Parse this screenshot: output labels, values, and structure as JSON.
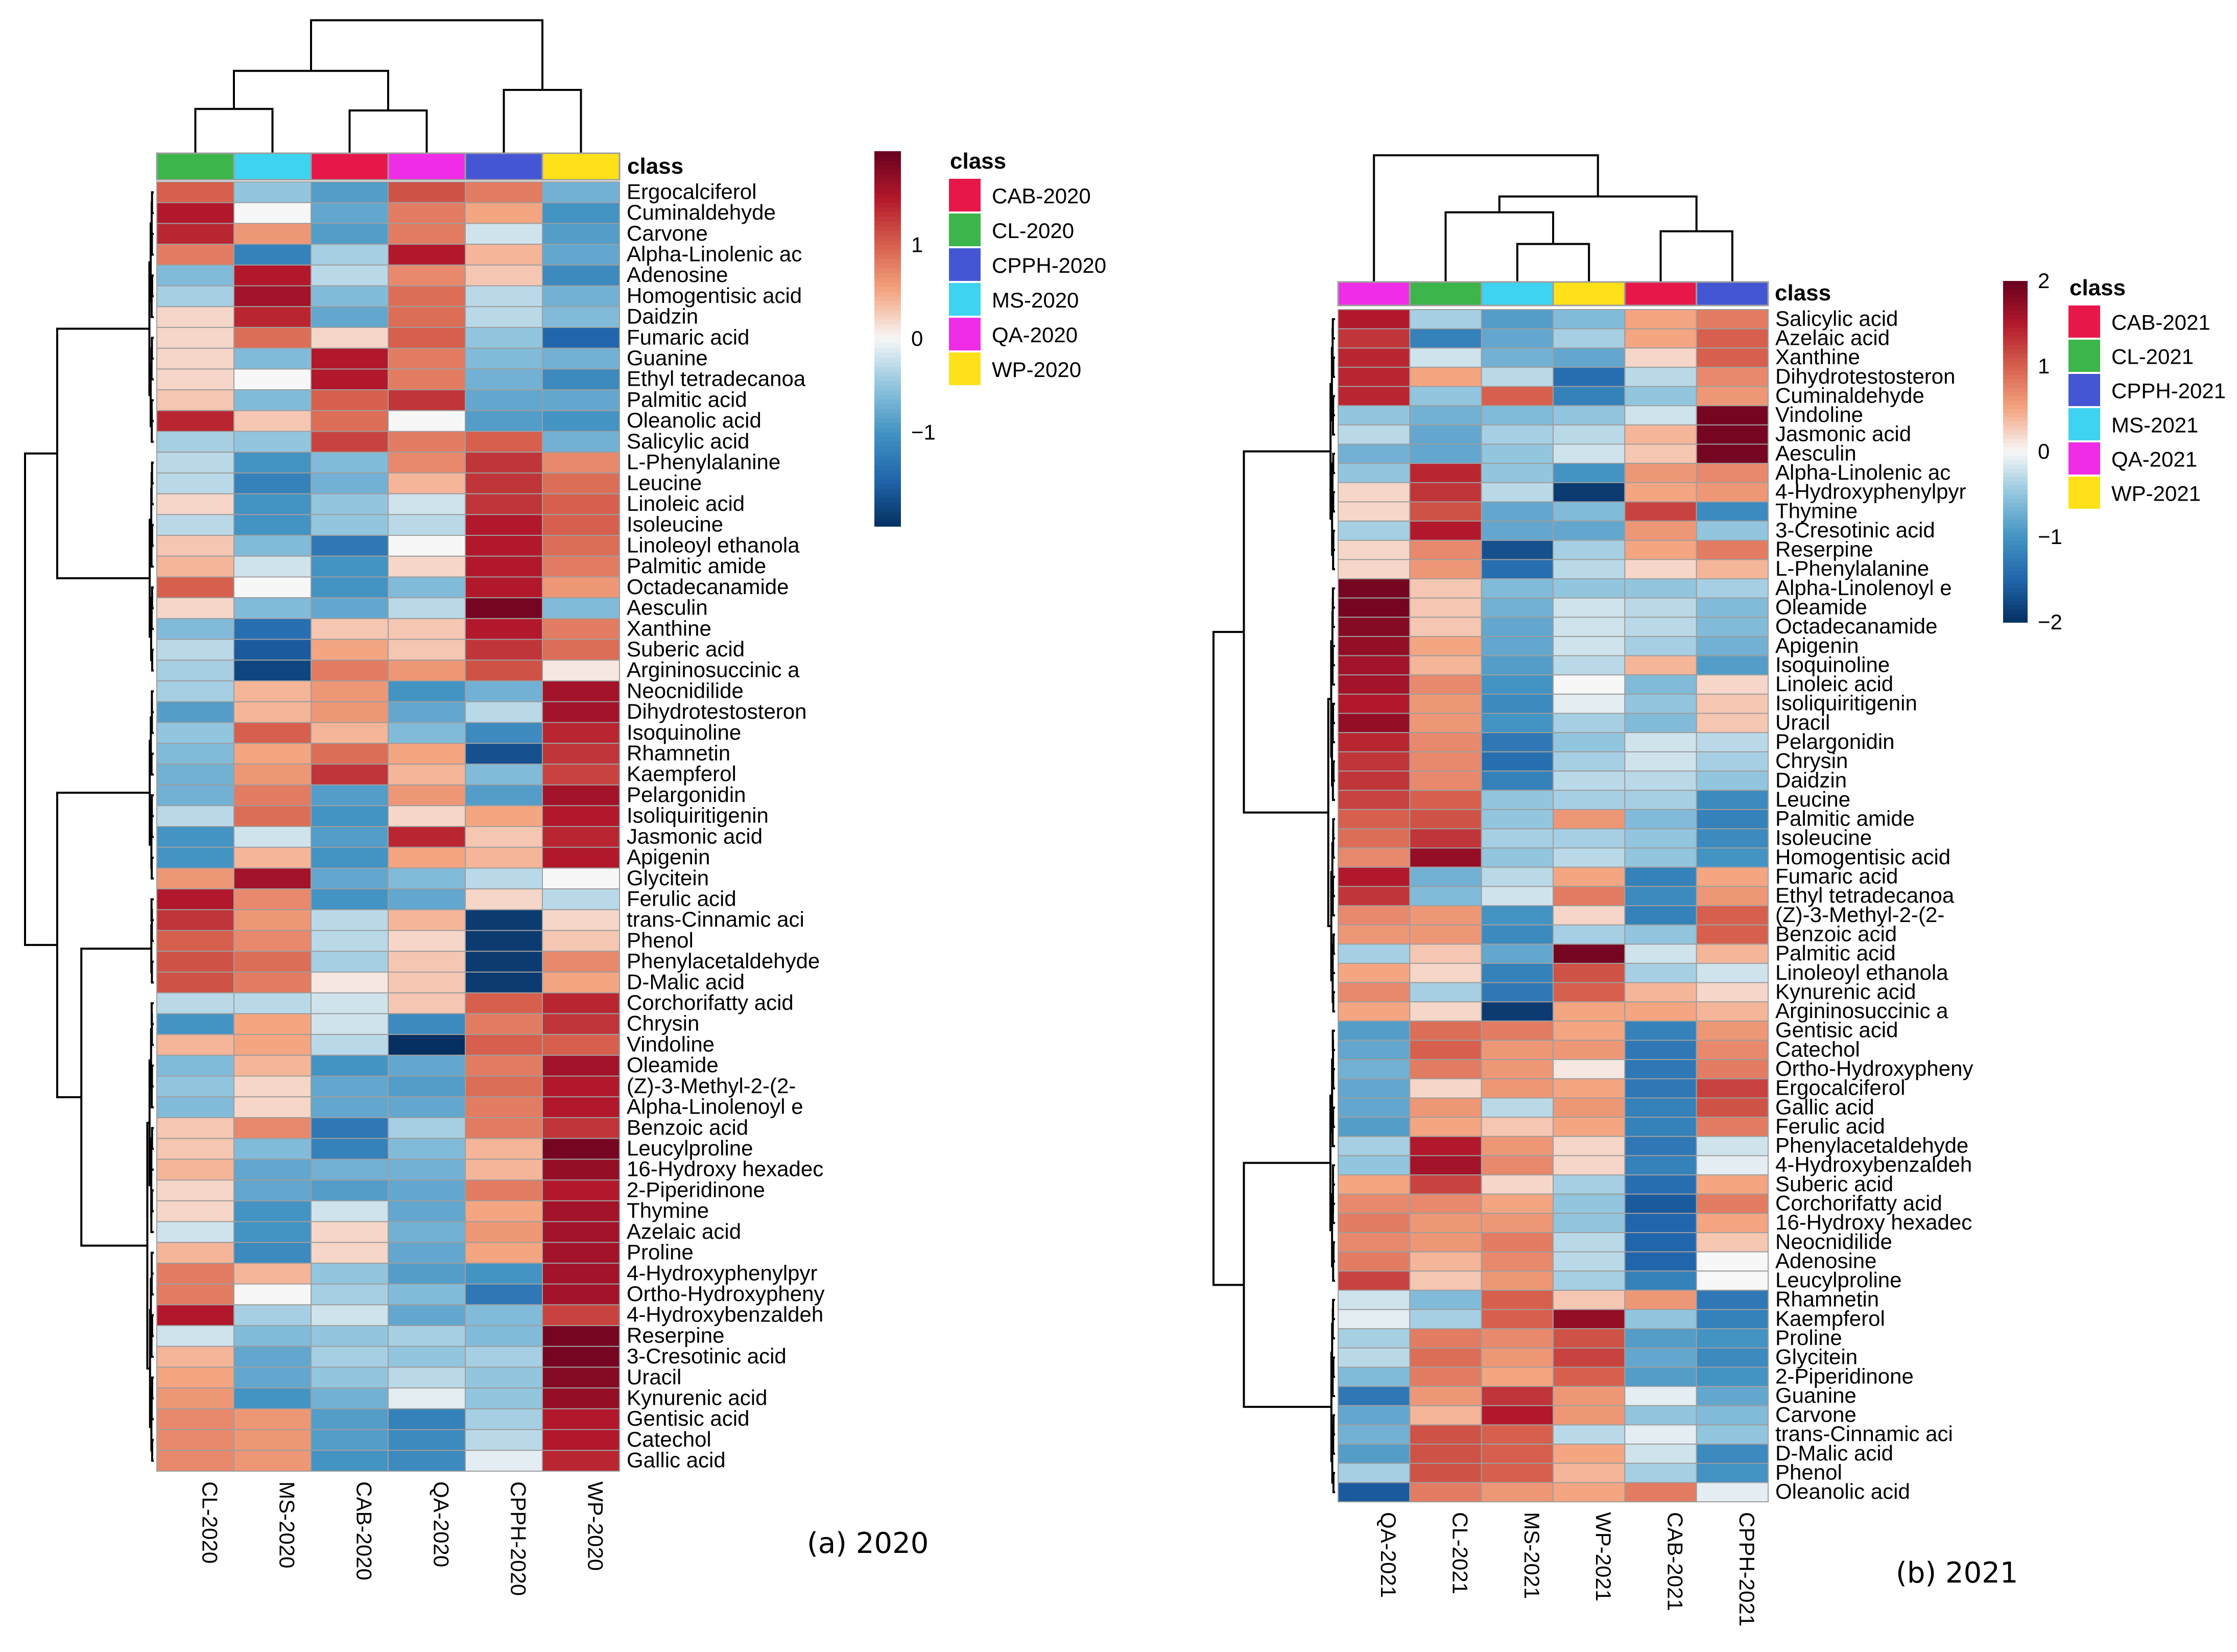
{
  "chart_data": [
    {
      "type": "heatmap",
      "panel_caption": "(a) 2020",
      "class_label": "class",
      "columns": [
        "CL-2020",
        "MS-2020",
        "CAB-2020",
        "QA-2020",
        "CPPH-2020",
        "WP-2020"
      ],
      "column_classes": [
        "CL-2020",
        "MS-2020",
        "CAB-2020",
        "QA-2020",
        "CPPH-2020",
        "WP-2020"
      ],
      "rows": [
        "Ergocalciferol",
        "Cuminaldehyde",
        "Carvone",
        "Alpha-Linolenic ac",
        "Adenosine",
        "Homogentisic acid",
        "Daidzin",
        "Fumaric acid",
        "Guanine",
        "Ethyl tetradecanoa",
        "Palmitic acid",
        "Oleanolic acid",
        "Salicylic acid",
        "L-Phenylalanine",
        "Leucine",
        "Linoleic acid",
        "Isoleucine",
        "Linoleoyl ethanola",
        "Palmitic amide",
        "Octadecanamide",
        "Aesculin",
        "Xanthine",
        "Suberic acid",
        "Argininosuccinic a",
        "Neocnidilide",
        "Dihydrotestosteron",
        "Isoquinoline",
        "Rhamnetin",
        "Kaempferol",
        "Pelargonidin",
        "Isoliquiritigenin",
        "Jasmonic acid",
        "Apigenin",
        "Glycitein",
        "Ferulic acid",
        "trans-Cinnamic aci",
        "Phenol",
        "Phenylacetaldehyde",
        "D-Malic acid",
        "Corchorifatty acid",
        "Chrysin",
        "Vindoline",
        "Oleamide",
        "(Z)-3-Methyl-2-(2-",
        "Alpha-Linolenoyl e",
        "Benzoic acid",
        "Leucylproline",
        "16-Hydroxy hexadec",
        "2-Piperidinone",
        "Thymine",
        "Azelaic acid",
        "Proline",
        "4-Hydroxyphenylpyr",
        "Ortho-Hydroxypheny",
        "4-Hydroxybenzaldeh",
        "Reserpine",
        "3-Cresotinic acid",
        "Uracil",
        "Kynurenic acid",
        "Gentisic acid",
        "Catechol",
        "Gallic acid"
      ],
      "values": [
        [
          1.0,
          -0.5,
          -0.9,
          1.1,
          0.8,
          -0.7
        ],
        [
          1.5,
          0.0,
          -0.8,
          0.8,
          0.5,
          -1.0
        ],
        [
          1.4,
          0.6,
          -0.9,
          0.8,
          -0.2,
          -0.9
        ],
        [
          0.8,
          -1.2,
          -0.4,
          1.5,
          0.4,
          -0.8
        ],
        [
          -0.6,
          1.5,
          -0.3,
          0.7,
          0.3,
          -1.1
        ],
        [
          -0.4,
          1.6,
          -0.6,
          0.9,
          -0.3,
          -0.7
        ],
        [
          0.2,
          1.4,
          -0.8,
          0.9,
          -0.3,
          -0.6
        ],
        [
          0.2,
          0.9,
          0.2,
          1.0,
          -0.5,
          -1.5
        ],
        [
          0.2,
          -0.6,
          1.5,
          0.8,
          -0.6,
          -0.7
        ],
        [
          0.2,
          0.0,
          1.5,
          0.8,
          -0.7,
          -1.1
        ],
        [
          0.3,
          -0.6,
          1.0,
          1.3,
          -0.8,
          -0.8
        ],
        [
          1.4,
          0.3,
          0.9,
          0.0,
          -0.9,
          -1.0
        ],
        [
          -0.4,
          -0.5,
          1.2,
          0.8,
          1.0,
          -0.7
        ],
        [
          -0.3,
          -1.0,
          -0.6,
          0.7,
          1.3,
          0.7
        ],
        [
          -0.3,
          -1.2,
          -0.7,
          0.4,
          1.3,
          0.9
        ],
        [
          0.2,
          -1.0,
          -0.5,
          -0.2,
          1.3,
          1.0
        ],
        [
          -0.3,
          -1.0,
          -0.5,
          -0.3,
          1.5,
          1.0
        ],
        [
          0.3,
          -0.6,
          -1.3,
          0.0,
          1.5,
          0.9
        ],
        [
          0.4,
          -0.2,
          -1.0,
          0.2,
          1.5,
          0.8
        ],
        [
          1.0,
          0.0,
          -1.0,
          -0.6,
          1.5,
          0.6
        ],
        [
          0.2,
          -0.6,
          -0.8,
          -0.3,
          1.9,
          -0.6
        ],
        [
          -0.6,
          -1.4,
          0.3,
          0.3,
          1.5,
          0.8
        ],
        [
          -0.3,
          -1.6,
          0.5,
          0.3,
          1.3,
          0.9
        ],
        [
          -0.4,
          -1.8,
          0.8,
          0.6,
          1.1,
          0.1
        ],
        [
          -0.4,
          0.4,
          0.6,
          -1.0,
          -0.7,
          1.6
        ],
        [
          -0.9,
          0.4,
          0.6,
          -0.8,
          -0.3,
          1.6
        ],
        [
          -0.5,
          1.0,
          0.4,
          -0.6,
          -1.1,
          1.4
        ],
        [
          -0.6,
          0.5,
          0.9,
          0.5,
          -1.7,
          1.3
        ],
        [
          -0.7,
          0.6,
          1.3,
          0.4,
          -0.6,
          1.2
        ],
        [
          -0.7,
          0.8,
          -0.9,
          0.6,
          -0.9,
          1.6
        ],
        [
          -0.3,
          0.9,
          -1.0,
          0.2,
          0.5,
          1.5
        ],
        [
          -1.0,
          -0.2,
          -0.9,
          1.4,
          0.3,
          1.4
        ],
        [
          -1.0,
          0.4,
          -1.0,
          0.5,
          0.4,
          1.5
        ],
        [
          0.6,
          1.6,
          -0.8,
          -0.6,
          -0.3,
          0.0
        ],
        [
          1.5,
          0.7,
          -1.0,
          -0.8,
          0.2,
          -0.3
        ],
        [
          1.3,
          0.6,
          -0.3,
          0.4,
          -1.9,
          0.2
        ],
        [
          1.0,
          0.7,
          -0.3,
          0.2,
          -1.9,
          0.3
        ],
        [
          1.1,
          0.9,
          -0.4,
          0.3,
          -1.9,
          0.7
        ],
        [
          1.1,
          0.8,
          0.1,
          0.3,
          -1.9,
          0.5
        ],
        [
          -0.3,
          -0.3,
          -0.2,
          0.3,
          1.0,
          1.4
        ],
        [
          -1.0,
          0.5,
          -0.2,
          -1.1,
          0.8,
          1.3
        ],
        [
          0.4,
          0.5,
          -0.3,
          -2.0,
          1.0,
          1.0
        ],
        [
          -0.6,
          0.4,
          -1.0,
          -0.8,
          0.8,
          1.6
        ],
        [
          -0.5,
          0.2,
          -0.8,
          -0.9,
          0.9,
          1.5
        ],
        [
          -0.6,
          0.2,
          -0.8,
          -0.8,
          0.8,
          1.5
        ],
        [
          0.3,
          0.7,
          -1.3,
          -0.4,
          0.8,
          1.3
        ],
        [
          0.3,
          -0.6,
          -1.2,
          -0.6,
          0.4,
          1.9
        ],
        [
          0.4,
          -0.8,
          -0.7,
          -0.7,
          0.4,
          1.7
        ],
        [
          0.2,
          -0.8,
          -0.9,
          -0.8,
          0.8,
          1.5
        ],
        [
          0.2,
          -1.0,
          -0.2,
          -0.8,
          0.5,
          1.6
        ],
        [
          -0.2,
          -1.0,
          0.2,
          -0.7,
          0.6,
          1.6
        ],
        [
          0.4,
          -1.1,
          0.2,
          -0.8,
          0.5,
          1.6
        ],
        [
          0.8,
          0.4,
          -0.5,
          -0.9,
          -1.0,
          1.6
        ],
        [
          0.8,
          0.0,
          -0.4,
          -0.6,
          -1.3,
          1.6
        ],
        [
          1.5,
          -0.4,
          -0.2,
          -0.8,
          -0.6,
          1.2
        ],
        [
          -0.2,
          -0.6,
          -0.5,
          -0.4,
          -0.6,
          1.9
        ],
        [
          0.4,
          -0.8,
          -0.4,
          -0.5,
          -0.4,
          1.9
        ],
        [
          0.5,
          -0.8,
          -0.5,
          -0.3,
          -0.5,
          1.8
        ],
        [
          0.6,
          -1.0,
          -0.7,
          -0.1,
          -0.5,
          1.7
        ],
        [
          0.7,
          0.6,
          -0.9,
          -1.2,
          -0.4,
          1.5
        ],
        [
          0.7,
          0.6,
          -0.9,
          -1.1,
          -0.3,
          1.5
        ],
        [
          0.7,
          0.6,
          -1.0,
          -1.1,
          -0.1,
          1.4
        ]
      ],
      "colorbar": {
        "min": -2,
        "max": 2,
        "ticks": [
          -1,
          0,
          1
        ],
        "tick_labels": [
          "−1",
          "0",
          "1"
        ]
      },
      "legend": {
        "title": "class",
        "entries": [
          {
            "label": "CAB-2020",
            "color": "#e8174a"
          },
          {
            "label": "CL-2020",
            "color": "#3cb54a"
          },
          {
            "label": "CPPH-2020",
            "color": "#4556d4"
          },
          {
            "label": "MS-2020",
            "color": "#3ed3f0"
          },
          {
            "label": "QA-2020",
            "color": "#f02de6"
          },
          {
            "label": "WP-2020",
            "color": "#ffe119"
          }
        ]
      }
    },
    {
      "type": "heatmap",
      "panel_caption": "(b) 2021",
      "class_label": "class",
      "columns": [
        "QA-2021",
        "CL-2021",
        "MS-2021",
        "WP-2021",
        "CAB-2021",
        "CPPH-2021"
      ],
      "column_classes": [
        "QA-2021",
        "CL-2021",
        "MS-2021",
        "WP-2021",
        "CAB-2021",
        "CPPH-2021"
      ],
      "rows": [
        "Salicylic acid",
        "Azelaic acid",
        "Xanthine",
        "Dihydrotestosteron",
        "Cuminaldehyde",
        "Vindoline",
        "Jasmonic acid",
        "Aesculin",
        "Alpha-Linolenic ac",
        "4-Hydroxyphenylpyr",
        "Thymine",
        "3-Cresotinic acid",
        "Reserpine",
        "L-Phenylalanine",
        "Alpha-Linolenoyl e",
        "Oleamide",
        "Octadecanamide",
        "Apigenin",
        "Isoquinoline",
        "Linoleic acid",
        "Isoliquiritigenin",
        "Uracil",
        "Pelargonidin",
        "Chrysin",
        "Daidzin",
        "Leucine",
        "Palmitic amide",
        "Isoleucine",
        "Homogentisic acid",
        "Fumaric acid",
        "Ethyl tetradecanoa",
        "(Z)-3-Methyl-2-(2-",
        "Benzoic acid",
        "Palmitic acid",
        "Linoleoyl ethanola",
        "Kynurenic acid",
        "Argininosuccinic a",
        "Gentisic acid",
        "Catechol",
        "Ortho-Hydroxypheny",
        "Ergocalciferol",
        "Gallic acid",
        "Ferulic acid",
        "Phenylacetaldehyde",
        "4-Hydroxybenzaldeh",
        "Suberic acid",
        "Corchorifatty acid",
        "16-Hydroxy hexadec",
        "Neocnidilide",
        "Adenosine",
        "Leucylproline",
        "Rhamnetin",
        "Kaempferol",
        "Proline",
        "Glycitein",
        "2-Piperidinone",
        "Guanine",
        "Carvone",
        "trans-Cinnamic aci",
        "D-Malic acid",
        "Phenol",
        "Oleanolic acid"
      ],
      "values": [
        [
          1.5,
          -0.4,
          -0.9,
          -0.6,
          0.5,
          0.8
        ],
        [
          1.3,
          -1.2,
          -0.8,
          -0.4,
          0.5,
          1.0
        ],
        [
          1.4,
          -0.2,
          -0.7,
          -0.8,
          0.2,
          1.0
        ],
        [
          1.4,
          0.5,
          -0.3,
          -1.4,
          -0.3,
          0.7
        ],
        [
          1.4,
          -0.5,
          1.0,
          -1.2,
          -0.5,
          0.6
        ],
        [
          -0.5,
          -0.7,
          -0.6,
          -0.5,
          -0.2,
          1.9
        ],
        [
          -0.3,
          -0.8,
          -0.4,
          -0.3,
          0.4,
          1.9
        ],
        [
          -0.7,
          -0.8,
          -0.5,
          -0.2,
          0.3,
          1.9
        ],
        [
          -0.5,
          1.4,
          -0.5,
          -1.0,
          0.6,
          0.7
        ],
        [
          0.2,
          1.3,
          -0.3,
          -1.9,
          0.5,
          0.6
        ],
        [
          0.2,
          1.1,
          -0.8,
          -0.6,
          1.2,
          -1.1
        ],
        [
          -0.4,
          1.5,
          -0.8,
          -0.8,
          0.6,
          -0.5
        ],
        [
          0.2,
          0.7,
          -1.7,
          -0.4,
          0.5,
          0.8
        ],
        [
          0.2,
          0.6,
          -1.4,
          -0.3,
          0.2,
          0.4
        ],
        [
          1.9,
          0.3,
          -0.6,
          -0.5,
          -0.5,
          -0.4
        ],
        [
          1.9,
          0.3,
          -0.7,
          -0.2,
          -0.3,
          -0.6
        ],
        [
          1.8,
          0.3,
          -0.8,
          -0.2,
          -0.3,
          -0.6
        ],
        [
          1.7,
          0.5,
          -0.8,
          -0.2,
          -0.4,
          -0.7
        ],
        [
          1.6,
          0.4,
          -0.9,
          -0.3,
          0.4,
          -0.9
        ],
        [
          1.6,
          0.7,
          -1.0,
          0.0,
          -0.6,
          0.2
        ],
        [
          1.5,
          0.6,
          -1.1,
          -0.1,
          -0.5,
          0.3
        ],
        [
          1.7,
          0.6,
          -1.0,
          -0.4,
          -0.6,
          0.3
        ],
        [
          1.4,
          0.7,
          -1.3,
          -0.5,
          -0.2,
          -0.3
        ],
        [
          1.3,
          0.7,
          -1.4,
          -0.4,
          -0.2,
          -0.4
        ],
        [
          1.3,
          0.7,
          -1.2,
          -0.3,
          -0.3,
          -0.5
        ],
        [
          1.2,
          1.0,
          -0.5,
          -0.4,
          -0.4,
          -1.1
        ],
        [
          1.0,
          1.1,
          -0.5,
          0.6,
          -0.6,
          -1.2
        ],
        [
          0.9,
          1.3,
          -0.4,
          -0.4,
          -0.5,
          -1.1
        ],
        [
          0.7,
          1.7,
          -0.5,
          -0.3,
          -0.5,
          -1.0
        ],
        [
          1.5,
          -0.7,
          -0.3,
          0.5,
          -1.2,
          0.5
        ],
        [
          1.3,
          -0.6,
          -0.2,
          0.8,
          -1.1,
          0.6
        ],
        [
          0.7,
          0.6,
          -1.0,
          0.2,
          -1.2,
          1.0
        ],
        [
          0.6,
          0.6,
          -1.1,
          -0.4,
          -0.5,
          1.0
        ],
        [
          -0.4,
          0.3,
          -0.8,
          1.9,
          -0.2,
          0.4
        ],
        [
          0.5,
          0.2,
          -1.2,
          1.1,
          -0.4,
          -0.2
        ],
        [
          0.7,
          -0.4,
          -1.3,
          1.0,
          0.4,
          0.2
        ],
        [
          0.5,
          0.2,
          -1.9,
          0.5,
          0.5,
          0.4
        ],
        [
          -0.9,
          0.9,
          0.8,
          0.5,
          -1.2,
          0.6
        ],
        [
          -0.8,
          1.0,
          0.6,
          0.6,
          -1.3,
          0.7
        ],
        [
          -0.7,
          0.8,
          0.6,
          0.1,
          -1.3,
          0.8
        ],
        [
          -0.8,
          0.2,
          0.6,
          0.5,
          -1.3,
          1.2
        ],
        [
          -0.8,
          0.6,
          -0.3,
          0.6,
          -1.2,
          1.1
        ],
        [
          -0.9,
          0.5,
          0.3,
          0.5,
          -1.2,
          0.8
        ],
        [
          -0.4,
          1.5,
          0.6,
          0.2,
          -1.3,
          -0.2
        ],
        [
          -0.5,
          1.6,
          0.7,
          0.2,
          -1.2,
          -0.1
        ],
        [
          0.5,
          1.2,
          0.2,
          -0.4,
          -1.4,
          0.5
        ],
        [
          0.7,
          0.7,
          0.5,
          -0.5,
          -1.6,
          0.8
        ],
        [
          0.8,
          0.6,
          0.6,
          -0.5,
          -1.5,
          0.5
        ],
        [
          0.7,
          0.6,
          0.8,
          -0.3,
          -1.5,
          0.3
        ],
        [
          0.8,
          0.4,
          0.7,
          -0.3,
          -1.5,
          0.0
        ],
        [
          1.2,
          0.3,
          0.6,
          -0.4,
          -1.2,
          0.0
        ],
        [
          -0.2,
          -0.6,
          1.0,
          0.3,
          0.6,
          -1.3
        ],
        [
          -0.1,
          -0.4,
          1.0,
          1.7,
          -0.5,
          -1.2
        ],
        [
          -0.4,
          0.8,
          0.7,
          1.1,
          -0.9,
          -1.0
        ],
        [
          -0.3,
          0.9,
          0.6,
          1.2,
          -0.8,
          -1.1
        ],
        [
          -0.6,
          0.8,
          0.5,
          1.0,
          -0.9,
          -1.0
        ],
        [
          -1.3,
          0.6,
          1.3,
          0.6,
          -0.1,
          -0.8
        ],
        [
          -0.8,
          0.4,
          1.5,
          0.6,
          -0.5,
          -0.6
        ],
        [
          -0.7,
          1.1,
          1.0,
          -0.3,
          -0.1,
          -0.5
        ],
        [
          -0.9,
          1.1,
          1.0,
          0.5,
          -0.2,
          -1.1
        ],
        [
          -0.4,
          1.1,
          1.0,
          0.4,
          -0.4,
          -1.0
        ],
        [
          -1.6,
          0.8,
          0.6,
          0.5,
          0.8,
          -0.1
        ]
      ],
      "colorbar": {
        "min": -2,
        "max": 2,
        "ticks": [
          2,
          1,
          0,
          -1,
          -2
        ],
        "tick_labels": [
          "2",
          "1",
          "0",
          "−1",
          "−2"
        ]
      },
      "legend": {
        "title": "class",
        "entries": [
          {
            "label": "CAB-2021",
            "color": "#e8174a"
          },
          {
            "label": "CL-2021",
            "color": "#3cb54a"
          },
          {
            "label": "CPPH-2021",
            "color": "#4556d4"
          },
          {
            "label": "MS-2021",
            "color": "#3ed3f0"
          },
          {
            "label": "QA-2021",
            "color": "#f02de6"
          },
          {
            "label": "WP-2021",
            "color": "#ffe119"
          }
        ]
      }
    }
  ]
}
